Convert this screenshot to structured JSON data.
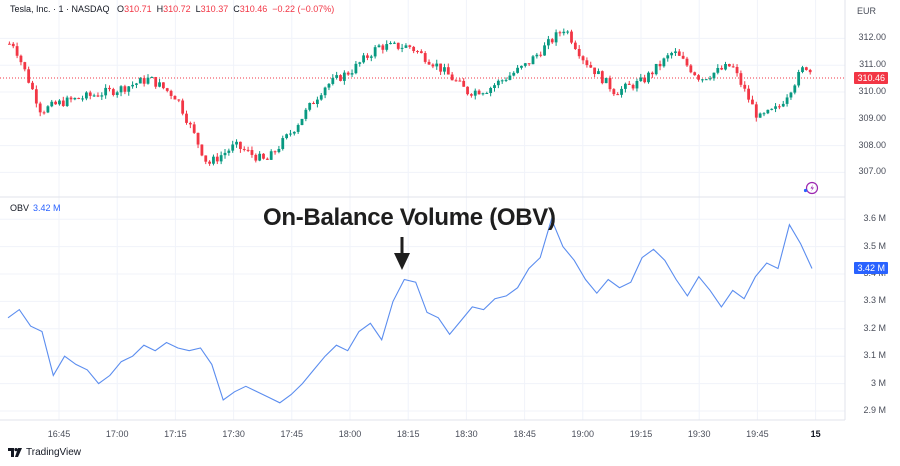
{
  "header": {
    "symbol": "Tesla, Inc. · 1 · NASDAQ",
    "open_label": "O",
    "open": "310.71",
    "high_label": "H",
    "high": "310.72",
    "low_label": "L",
    "low": "310.37",
    "close_label": "C",
    "close": "310.46",
    "change": "−0.22 (−0.07%)",
    "currency": "EUR"
  },
  "price_axis": {
    "ticks": [
      "312.00",
      "311.00",
      "310.00",
      "309.00",
      "308.00",
      "307.00"
    ],
    "current_price_badge": "310.46",
    "badge_color": "#f23645"
  },
  "obv_pane": {
    "label": "OBV",
    "value": "3.42 M",
    "ticks": [
      "3.6 M",
      "3.5 M",
      "3.4 M",
      "3.3 M",
      "3.2 M",
      "3.1 M",
      "3 M",
      "2.9 M"
    ],
    "current_value_badge": "3.42 M",
    "line_color": "#5b8def",
    "badge_color": "#2962ff"
  },
  "time_axis": {
    "labels": [
      "16:45",
      "17:00",
      "17:15",
      "17:30",
      "17:45",
      "18:00",
      "18:15",
      "18:30",
      "18:45",
      "19:00",
      "19:15",
      "19:30",
      "19:45",
      "15"
    ]
  },
  "annotation": {
    "title": "On-Balance Volume (OBV)",
    "arrow": "down-arrow"
  },
  "branding": {
    "logo_text": "TradingView"
  },
  "colors": {
    "up": "#089981",
    "down": "#f23645",
    "grid": "#f0f3fa"
  },
  "chart_data": [
    {
      "type": "candlestick",
      "title": "Tesla, Inc. · 1 · NASDAQ",
      "ylabel": "EUR",
      "ylim": [
        306.6,
        312.6
      ],
      "yticks": [
        307,
        308,
        309,
        310,
        311,
        312
      ],
      "x_tick_labels": [
        "16:45",
        "17:00",
        "17:15",
        "17:30",
        "17:45",
        "18:00",
        "18:15",
        "18:30",
        "18:45",
        "19:00",
        "19:15",
        "19:30",
        "19:45",
        "15"
      ],
      "last": {
        "open": 310.71,
        "high": 310.72,
        "low": 310.37,
        "close": 310.46,
        "change": -0.22,
        "change_pct": -0.07
      },
      "approx_close_path": [
        {
          "t": "16:33",
          "price": 311.8
        },
        {
          "t": "16:40",
          "price": 309.3
        },
        {
          "t": "16:45",
          "price": 309.6
        },
        {
          "t": "17:00",
          "price": 310.1
        },
        {
          "t": "17:08",
          "price": 310.5
        },
        {
          "t": "17:15",
          "price": 309.8
        },
        {
          "t": "17:23",
          "price": 307.3
        },
        {
          "t": "17:30",
          "price": 308.0
        },
        {
          "t": "17:38",
          "price": 307.4
        },
        {
          "t": "17:45",
          "price": 308.6
        },
        {
          "t": "17:53",
          "price": 310.2
        },
        {
          "t": "18:00",
          "price": 310.8
        },
        {
          "t": "18:07",
          "price": 311.7
        },
        {
          "t": "18:15",
          "price": 311.7
        },
        {
          "t": "18:22",
          "price": 311.0
        },
        {
          "t": "18:30",
          "price": 310.0
        },
        {
          "t": "18:35",
          "price": 310.1
        },
        {
          "t": "18:45",
          "price": 311.0
        },
        {
          "t": "18:55",
          "price": 312.4
        },
        {
          "t": "19:00",
          "price": 311.2
        },
        {
          "t": "19:08",
          "price": 310.0
        },
        {
          "t": "19:15",
          "price": 310.4
        },
        {
          "t": "19:23",
          "price": 311.5
        },
        {
          "t": "19:30",
          "price": 310.5
        },
        {
          "t": "19:38",
          "price": 311.0
        },
        {
          "t": "19:45",
          "price": 309.0
        },
        {
          "t": "19:50",
          "price": 309.4
        },
        {
          "t": "19:57",
          "price": 311.0
        },
        {
          "t": "20:00",
          "price": 310.46
        }
      ]
    },
    {
      "type": "line",
      "title": "OBV",
      "ylabel": "",
      "ylim": [
        2.88,
        3.67
      ],
      "yticks": [
        2.9,
        3.0,
        3.1,
        3.2,
        3.3,
        3.4,
        3.5,
        3.6
      ],
      "unit": "M",
      "current": 3.42,
      "series": [
        {
          "name": "OBV",
          "values": [
            3.24,
            3.27,
            3.21,
            3.19,
            3.03,
            3.1,
            3.07,
            3.05,
            3.0,
            3.03,
            3.08,
            3.1,
            3.14,
            3.12,
            3.15,
            3.13,
            3.12,
            3.13,
            3.07,
            2.94,
            2.97,
            2.99,
            2.97,
            2.95,
            2.93,
            2.96,
            3.0,
            3.05,
            3.1,
            3.14,
            3.12,
            3.19,
            3.22,
            3.16,
            3.3,
            3.38,
            3.37,
            3.26,
            3.24,
            3.18,
            3.23,
            3.28,
            3.27,
            3.31,
            3.32,
            3.35,
            3.42,
            3.46,
            3.6,
            3.5,
            3.45,
            3.38,
            3.33,
            3.38,
            3.35,
            3.37,
            3.46,
            3.49,
            3.45,
            3.38,
            3.32,
            3.39,
            3.34,
            3.28,
            3.34,
            3.31,
            3.39,
            3.44,
            3.42,
            3.58,
            3.51,
            3.42
          ]
        }
      ]
    }
  ]
}
